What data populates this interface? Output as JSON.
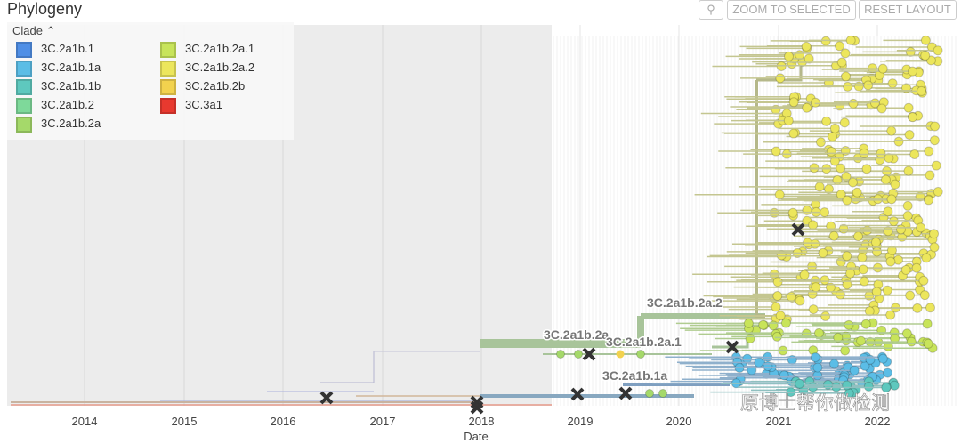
{
  "header": {
    "title": "Phylogeny",
    "buttons": [
      "ZOOM TO SELECTED",
      "RESET LAYOUT"
    ]
  },
  "legend": {
    "title": "Clade",
    "items": [
      {
        "label": "3C.2a1b.1",
        "color": "#4f8fe6"
      },
      {
        "label": "3C.2a1b.1a",
        "color": "#5bbde6"
      },
      {
        "label": "3C.2a1b.1b",
        "color": "#5ec8be"
      },
      {
        "label": "3C.2a1b.2",
        "color": "#7ed99a"
      },
      {
        "label": "3C.2a1b.2a",
        "color": "#a5d96a"
      },
      {
        "label": "3C.2a1b.2a.1",
        "color": "#c8e45a"
      },
      {
        "label": "3C.2a1b.2a.2",
        "color": "#ece65c"
      },
      {
        "label": "3C.2a1b.2b",
        "color": "#f2d24e"
      },
      {
        "label": "3C.3a1",
        "color": "#e8392f"
      }
    ]
  },
  "axis": {
    "title": "Date",
    "ticks": [
      "2014",
      "2015",
      "2016",
      "2017",
      "2018",
      "2019",
      "2020",
      "2021",
      "2022"
    ]
  },
  "clade_labels": [
    "3C.2a1b.2a.2",
    "3C.2a1b.2a",
    "3C.2a1b.2a.1",
    "3C.2a1b.1a"
  ],
  "watermark": "原博士帮你做检测"
}
